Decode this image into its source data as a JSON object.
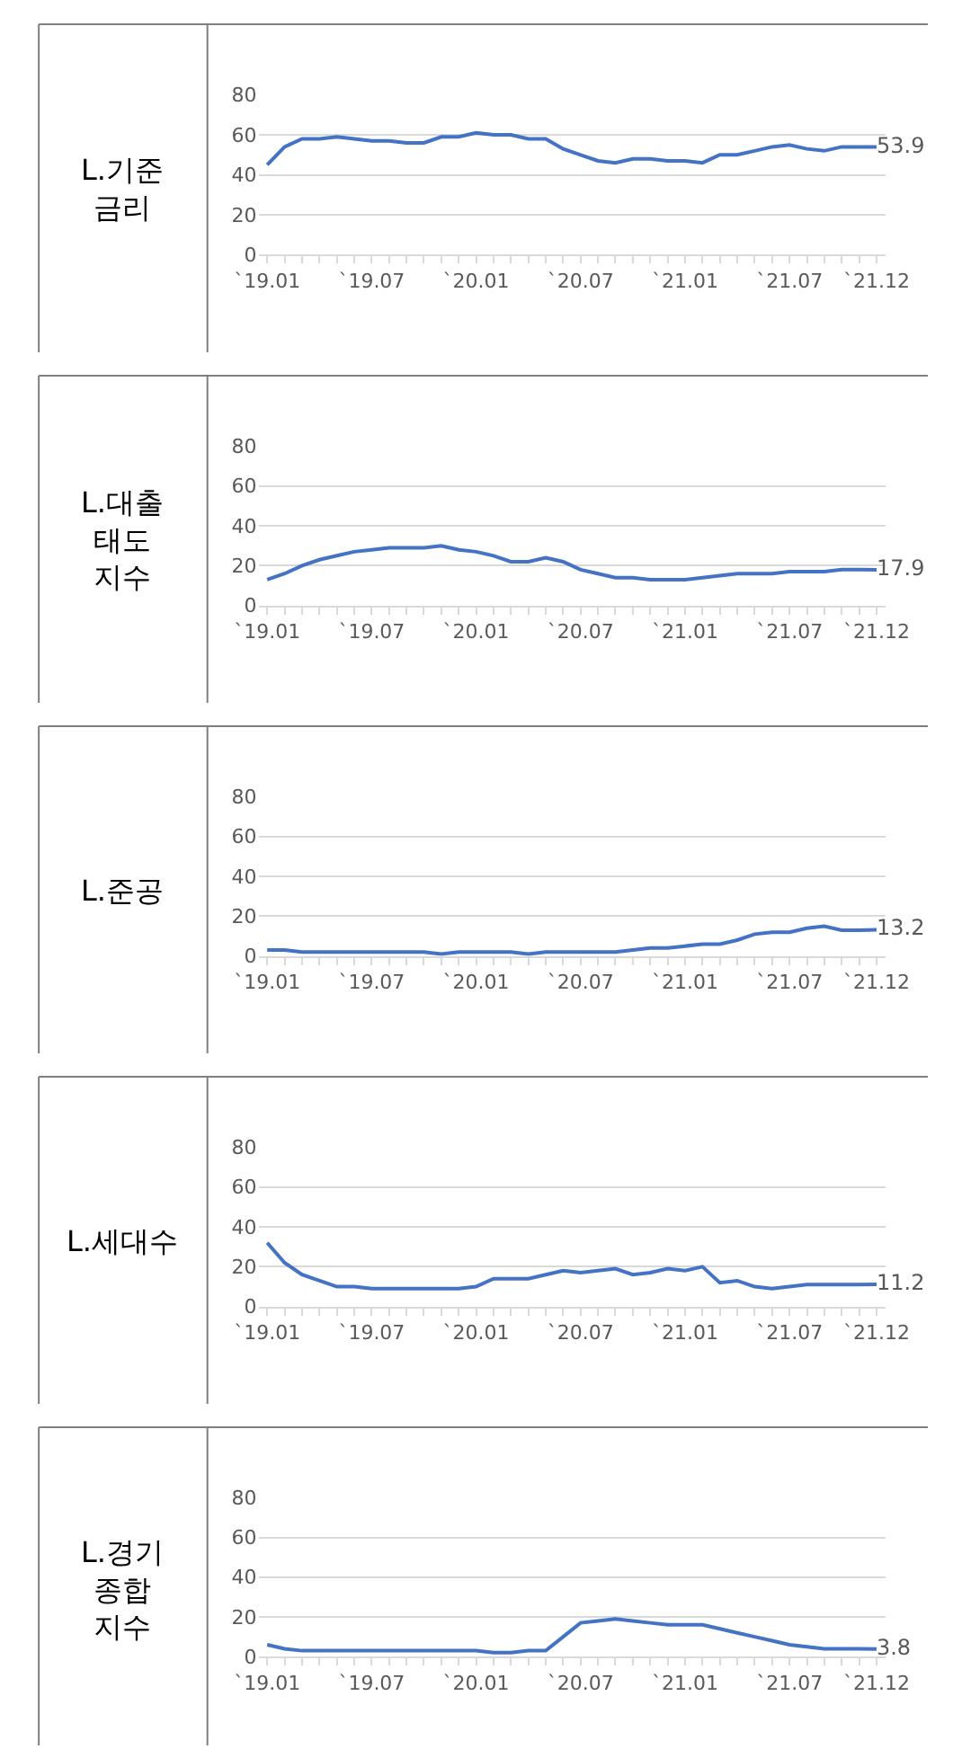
{
  "chart_data": [
    {
      "type": "line",
      "title": "L.기준\n금리",
      "categories": [
        "`19.01",
        null,
        null,
        null,
        null,
        null,
        "`19.07",
        null,
        null,
        null,
        null,
        null,
        "`20.01",
        null,
        null,
        null,
        null,
        null,
        "`20.07",
        null,
        null,
        null,
        null,
        null,
        "`21.01",
        null,
        null,
        null,
        null,
        null,
        "`21.07",
        null,
        null,
        null,
        null,
        "`21.12"
      ],
      "ylim": [
        0,
        80
      ],
      "yticks": [
        0,
        20,
        40,
        60,
        80
      ],
      "grid": "y",
      "marker": "none",
      "line_style": "solid",
      "series": [
        {
          "color": "#4472c4",
          "values": [
            45,
            54,
            58,
            58,
            59,
            58,
            57,
            57,
            56,
            56,
            59,
            59,
            61,
            60,
            60,
            58,
            58,
            53,
            50,
            47,
            46,
            48,
            48,
            47,
            47,
            46,
            50,
            50,
            52,
            54,
            55,
            53,
            52,
            54,
            54,
            53.9
          ],
          "value_labels": [
            null,
            null,
            null,
            null,
            null,
            null,
            null,
            null,
            null,
            null,
            null,
            null,
            null,
            null,
            null,
            null,
            null,
            null,
            null,
            null,
            null,
            null,
            null,
            null,
            null,
            null,
            null,
            null,
            null,
            null,
            null,
            null,
            null,
            null,
            null,
            "53.9"
          ]
        }
      ]
    },
    {
      "type": "line",
      "title": "L.대출\n태도\n지수",
      "categories": [
        "`19.01",
        null,
        null,
        null,
        null,
        null,
        "`19.07",
        null,
        null,
        null,
        null,
        null,
        "`20.01",
        null,
        null,
        null,
        null,
        null,
        "`20.07",
        null,
        null,
        null,
        null,
        null,
        "`21.01",
        null,
        null,
        null,
        null,
        null,
        "`21.07",
        null,
        null,
        null,
        null,
        "`21.12"
      ],
      "ylim": [
        0,
        80
      ],
      "yticks": [
        0,
        20,
        40,
        60,
        80
      ],
      "grid": "y",
      "marker": "none",
      "line_style": "solid",
      "series": [
        {
          "color": "#4472c4",
          "values": [
            13,
            16,
            20,
            23,
            25,
            27,
            28,
            29,
            29,
            29,
            30,
            28,
            27,
            25,
            22,
            22,
            24,
            22,
            18,
            16,
            14,
            14,
            13,
            13,
            13,
            14,
            15,
            16,
            16,
            16,
            17,
            17,
            17,
            18,
            18,
            17.9
          ],
          "value_labels": [
            null,
            null,
            null,
            null,
            null,
            null,
            null,
            null,
            null,
            null,
            null,
            null,
            null,
            null,
            null,
            null,
            null,
            null,
            null,
            null,
            null,
            null,
            null,
            null,
            null,
            null,
            null,
            null,
            null,
            null,
            null,
            null,
            null,
            null,
            null,
            "17.9"
          ]
        }
      ]
    },
    {
      "type": "line",
      "title": "L.준공",
      "categories": [
        "`19.01",
        null,
        null,
        null,
        null,
        null,
        "`19.07",
        null,
        null,
        null,
        null,
        null,
        "`20.01",
        null,
        null,
        null,
        null,
        null,
        "`20.07",
        null,
        null,
        null,
        null,
        null,
        "`21.01",
        null,
        null,
        null,
        null,
        null,
        "`21.07",
        null,
        null,
        null,
        null,
        "`21.12"
      ],
      "ylim": [
        0,
        80
      ],
      "yticks": [
        0,
        20,
        40,
        60,
        80
      ],
      "grid": "y",
      "marker": "none",
      "line_style": "solid",
      "series": [
        {
          "color": "#4472c4",
          "values": [
            3,
            3,
            2,
            2,
            2,
            2,
            2,
            2,
            2,
            2,
            1,
            2,
            2,
            2,
            2,
            1,
            2,
            2,
            2,
            2,
            2,
            3,
            4,
            4,
            5,
            6,
            6,
            8,
            11,
            12,
            12,
            14,
            15,
            13,
            13,
            13.2
          ],
          "value_labels": [
            null,
            null,
            null,
            null,
            null,
            null,
            null,
            null,
            null,
            null,
            null,
            null,
            null,
            null,
            null,
            null,
            null,
            null,
            null,
            null,
            null,
            null,
            null,
            null,
            null,
            null,
            null,
            null,
            null,
            null,
            null,
            null,
            null,
            null,
            null,
            "13.2"
          ]
        }
      ]
    },
    {
      "type": "line",
      "title": "L.세대수",
      "categories": [
        "`19.01",
        null,
        null,
        null,
        null,
        null,
        "`19.07",
        null,
        null,
        null,
        null,
        null,
        "`20.01",
        null,
        null,
        null,
        null,
        null,
        "`20.07",
        null,
        null,
        null,
        null,
        null,
        "`21.01",
        null,
        null,
        null,
        null,
        null,
        "`21.07",
        null,
        null,
        null,
        null,
        "`21.12"
      ],
      "ylim": [
        0,
        80
      ],
      "yticks": [
        0,
        20,
        40,
        60,
        80
      ],
      "grid": "y",
      "marker": "none",
      "line_style": "solid",
      "series": [
        {
          "color": "#4472c4",
          "values": [
            32,
            22,
            16,
            13,
            10,
            10,
            9,
            9,
            9,
            9,
            9,
            9,
            10,
            14,
            14,
            14,
            16,
            18,
            17,
            18,
            19,
            16,
            17,
            19,
            18,
            20,
            12,
            13,
            10,
            9,
            10,
            11,
            11,
            11,
            11,
            11.2
          ],
          "value_labels": [
            null,
            null,
            null,
            null,
            null,
            null,
            null,
            null,
            null,
            null,
            null,
            null,
            null,
            null,
            null,
            null,
            null,
            null,
            null,
            null,
            null,
            null,
            null,
            null,
            null,
            null,
            null,
            null,
            null,
            null,
            null,
            null,
            null,
            null,
            null,
            "11.2"
          ]
        }
      ]
    },
    {
      "type": "line",
      "title": "L.경기\n종합\n지수",
      "categories": [
        "`19.01",
        null,
        null,
        null,
        null,
        null,
        "`19.07",
        null,
        null,
        null,
        null,
        null,
        "`20.01",
        null,
        null,
        null,
        null,
        null,
        "`20.07",
        null,
        null,
        null,
        null,
        null,
        "`21.01",
        null,
        null,
        null,
        null,
        null,
        "`21.07",
        null,
        null,
        null,
        null,
        "`21.12"
      ],
      "ylim": [
        0,
        80
      ],
      "yticks": [
        0,
        20,
        40,
        60,
        80
      ],
      "grid": "y",
      "marker": "none",
      "line_style": "solid",
      "series": [
        {
          "color": "#4472c4",
          "values": [
            6,
            4,
            3,
            3,
            3,
            3,
            3,
            3,
            3,
            3,
            3,
            3,
            3,
            2,
            2,
            3,
            3,
            10,
            17,
            18,
            19,
            18,
            17,
            16,
            16,
            16,
            14,
            12,
            10,
            8,
            6,
            5,
            4,
            4,
            4,
            3.8
          ],
          "value_labels": [
            null,
            null,
            null,
            null,
            null,
            null,
            null,
            null,
            null,
            null,
            null,
            null,
            null,
            null,
            null,
            null,
            null,
            null,
            null,
            null,
            null,
            null,
            null,
            null,
            null,
            null,
            null,
            null,
            null,
            null,
            null,
            null,
            null,
            null,
            null,
            "3.8"
          ]
        }
      ]
    }
  ]
}
